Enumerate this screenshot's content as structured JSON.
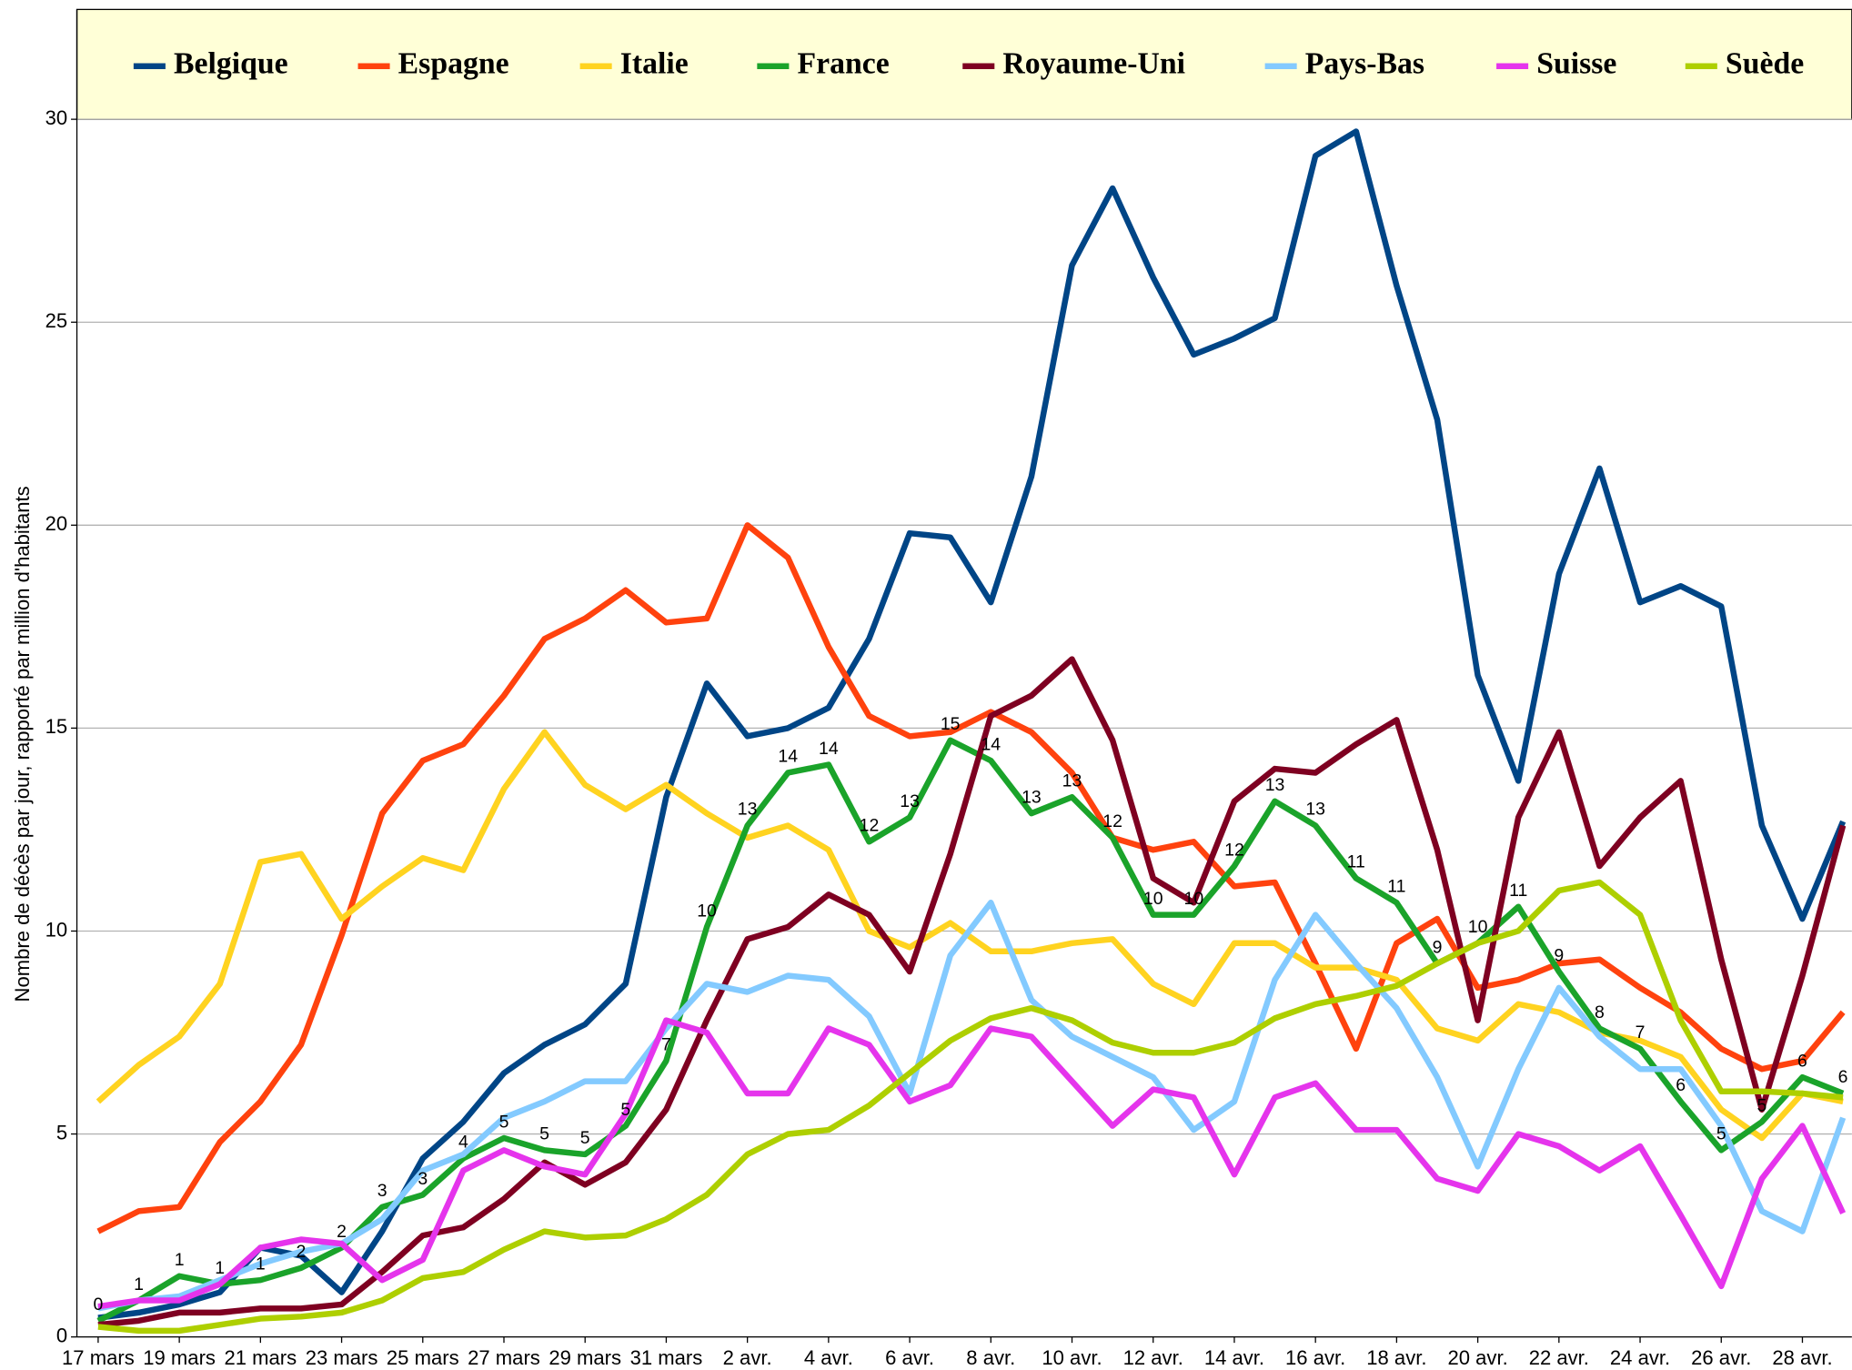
{
  "chart_data": {
    "type": "line",
    "y_label": "Nombre de décès par jour, rapporté par million d'habitants",
    "categories": [
      "17 mars",
      null,
      "19 mars",
      null,
      "21 mars",
      null,
      "23 mars",
      null,
      "25 mars",
      null,
      "27 mars",
      null,
      "29 mars",
      null,
      "31 mars",
      null,
      "2 avr.",
      null,
      "4 avr.",
      null,
      "6 avr.",
      null,
      "8 avr.",
      null,
      "10 avr.",
      null,
      "12 avr.",
      null,
      "14 avr.",
      null,
      "16 avr.",
      null,
      "18 avr.",
      null,
      "20 avr.",
      null,
      "22 avr.",
      null,
      "24 avr.",
      null,
      "26 avr.",
      null,
      "28 avr.",
      null
    ],
    "ylim": [
      0,
      30
    ],
    "yticks": [
      0,
      5,
      10,
      15,
      20,
      25,
      30
    ],
    "grid": true,
    "legend": "top",
    "series": [
      {
        "name": "Belgique",
        "color": "#004586",
        "values": [
          0.47,
          0.6,
          0.8,
          1.1,
          2.2,
          2.0,
          1.1,
          2.6,
          4.4,
          5.3,
          6.5,
          7.2,
          7.7,
          8.7,
          13.3,
          16.1,
          14.8,
          15.0,
          15.5,
          17.2,
          19.8,
          19.7,
          18.1,
          21.2,
          26.4,
          28.3,
          26.1,
          24.2,
          24.6,
          25.1,
          29.1,
          29.7,
          25.9,
          22.6,
          16.3,
          13.7,
          18.8,
          21.4,
          18.1,
          18.5,
          18.0,
          12.6,
          10.3,
          12.7
        ]
      },
      {
        "name": "Espagne",
        "color": "#ff420e",
        "values": [
          2.6,
          3.1,
          3.2,
          4.8,
          5.8,
          7.2,
          9.9,
          12.9,
          14.2,
          14.6,
          15.8,
          17.2,
          17.7,
          18.4,
          17.6,
          17.7,
          20.0,
          19.2,
          17.0,
          15.3,
          14.8,
          14.9,
          15.4,
          14.9,
          13.9,
          12.3,
          12.0,
          12.2,
          11.1,
          11.2,
          9.2,
          7.1,
          9.7,
          10.3,
          8.6,
          8.8,
          9.2,
          9.3,
          8.6,
          8.0,
          7.1,
          6.6,
          6.8,
          8.0
        ]
      },
      {
        "name": "Italie",
        "color": "#ffd320",
        "values": [
          5.8,
          6.7,
          7.4,
          8.7,
          11.7,
          11.9,
          10.3,
          11.1,
          11.8,
          11.5,
          13.5,
          14.9,
          13.6,
          13.0,
          13.6,
          12.9,
          12.3,
          12.6,
          12.0,
          10.0,
          9.6,
          10.2,
          9.5,
          9.5,
          9.7,
          9.8,
          8.7,
          8.2,
          9.7,
          9.7,
          9.1,
          9.1,
          8.8,
          7.6,
          7.3,
          8.2,
          8.0,
          7.5,
          7.3,
          6.9,
          5.6,
          4.9,
          6.0,
          5.8
        ]
      },
      {
        "name": "France",
        "color": "#1aa32a",
        "values": [
          0.4,
          0.9,
          1.5,
          1.3,
          1.4,
          1.7,
          2.2,
          3.2,
          3.5,
          4.4,
          4.9,
          4.6,
          4.5,
          5.2,
          6.8,
          10.1,
          12.6,
          13.9,
          14.1,
          12.2,
          12.8,
          14.7,
          14.2,
          12.9,
          13.3,
          12.3,
          10.4,
          10.4,
          11.6,
          13.2,
          12.6,
          11.3,
          10.7,
          9.2,
          9.7,
          10.6,
          9.0,
          7.6,
          7.1,
          5.8,
          4.6,
          5.3,
          6.4,
          6.0
        ],
        "value_labels": [
          "0",
          "1",
          "1",
          "1",
          "1",
          "2",
          "2",
          "3",
          "3",
          "4",
          "5",
          "5",
          "5",
          "5",
          "7",
          "10",
          "13",
          "14",
          "14",
          "12",
          "13",
          "15",
          "14",
          "13",
          "13",
          "12",
          "10",
          "10",
          "12",
          "13",
          "13",
          "11",
          "11",
          "9",
          "10",
          "11",
          "9",
          "8",
          "7",
          "6",
          "5",
          "5",
          "6",
          "6"
        ]
      },
      {
        "name": "Royaume-Uni",
        "color": "#7e0021",
        "values": [
          0.3,
          0.4,
          0.6,
          0.6,
          0.7,
          0.7,
          0.8,
          1.6,
          2.5,
          2.7,
          3.4,
          4.3,
          3.75,
          4.3,
          5.6,
          7.8,
          9.8,
          10.1,
          10.9,
          10.4,
          9.0,
          11.9,
          15.3,
          15.8,
          16.7,
          14.7,
          11.3,
          10.7,
          13.2,
          14.0,
          13.9,
          14.6,
          15.2,
          12.0,
          7.8,
          12.8,
          14.9,
          11.6,
          12.8,
          13.7,
          9.3,
          5.6,
          8.9,
          12.6
        ]
      },
      {
        "name": "Pays-Bas",
        "color": "#83caff",
        "values": [
          0.7,
          0.9,
          1.0,
          1.4,
          1.8,
          2.1,
          2.3,
          2.9,
          4.1,
          4.5,
          5.4,
          5.8,
          6.3,
          6.3,
          7.6,
          8.7,
          8.5,
          8.9,
          8.8,
          7.9,
          6.0,
          9.4,
          10.7,
          8.3,
          7.4,
          6.9,
          6.4,
          5.1,
          5.8,
          8.8,
          10.4,
          9.2,
          8.1,
          6.4,
          4.2,
          6.6,
          8.6,
          7.4,
          6.6,
          6.6,
          5.2,
          3.1,
          2.6,
          5.4
        ]
      },
      {
        "name": "Suisse",
        "color": "#e534ec",
        "values": [
          0.75,
          0.9,
          0.9,
          1.3,
          2.2,
          2.4,
          2.3,
          1.4,
          1.9,
          4.1,
          4.6,
          4.2,
          4.0,
          5.5,
          7.8,
          7.5,
          6.0,
          6.0,
          7.6,
          7.2,
          5.8,
          6.2,
          7.6,
          7.4,
          6.3,
          5.2,
          6.1,
          5.9,
          4.0,
          5.9,
          6.25,
          5.1,
          5.1,
          3.9,
          3.6,
          5.0,
          4.7,
          4.1,
          4.7,
          3.0,
          1.25,
          3.9,
          5.2,
          3.05
        ]
      },
      {
        "name": "Suède",
        "color": "#aecf00",
        "values": [
          0.25,
          0.15,
          0.15,
          0.3,
          0.45,
          0.5,
          0.6,
          0.9,
          1.45,
          1.6,
          2.15,
          2.6,
          2.45,
          2.5,
          2.9,
          3.5,
          4.5,
          5.0,
          5.1,
          5.7,
          6.5,
          7.3,
          7.85,
          8.1,
          7.8,
          7.25,
          7.0,
          7.0,
          7.25,
          7.85,
          8.2,
          8.4,
          8.65,
          9.2,
          9.7,
          10.0,
          11.0,
          11.2,
          10.4,
          7.8,
          6.05,
          6.05,
          6.0,
          5.9
        ]
      }
    ]
  }
}
